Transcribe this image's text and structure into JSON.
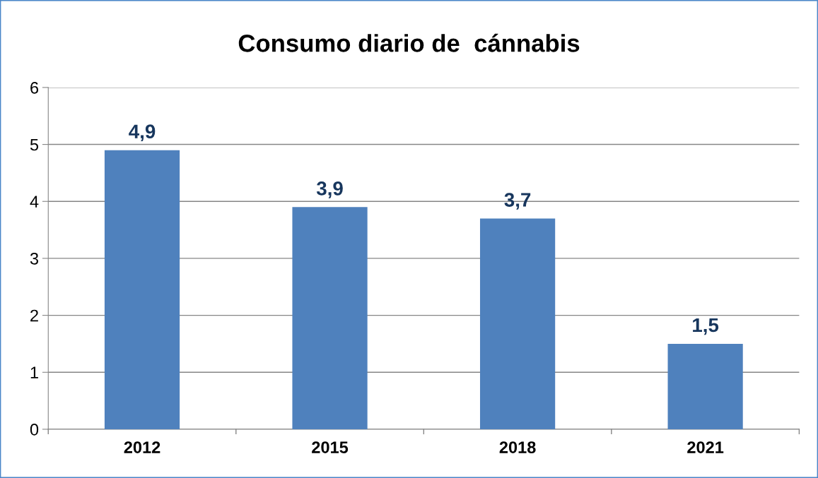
{
  "chart_data": {
    "type": "bar",
    "title": "Consumo diario de  cánnabis",
    "categories": [
      "2012",
      "2015",
      "2018",
      "2021"
    ],
    "values": [
      4.9,
      3.9,
      3.7,
      1.5
    ],
    "value_labels": [
      "4,9",
      "3,9",
      "3,7",
      "1,5"
    ],
    "color": "#4f81bd",
    "ylim": [
      0,
      6
    ],
    "yticks": [
      0,
      1,
      2,
      3,
      4,
      5,
      6
    ],
    "grid": "y",
    "legend": false
  }
}
